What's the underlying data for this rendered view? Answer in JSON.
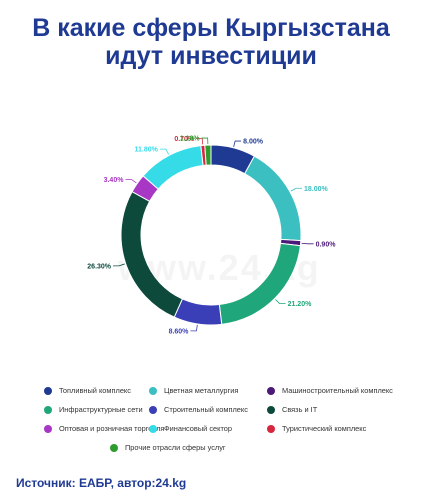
{
  "title_line1": "В какие сферы Кыргызстана",
  "title_line2": "идут инвестиции",
  "watermark": "www.24.kg",
  "source": "Источник: ЕАБР, автор:24.kg",
  "chart_data": {
    "type": "pie",
    "donut": true,
    "legend_position": "bottom",
    "series": [
      {
        "name": "Топливный комплекс",
        "value": 8.0,
        "label": "8.00%",
        "color": "#1f3a93"
      },
      {
        "name": "Цветная металлургия",
        "value": 18.0,
        "label": "18.00%",
        "color": "#3bbfc1"
      },
      {
        "name": "Машиностроительный комплекс",
        "value": 0.9,
        "label": "0.90%",
        "color": "#4b1a78"
      },
      {
        "name": "Инфраструктурные сети",
        "value": 21.2,
        "label": "21.20%",
        "color": "#1fa67a"
      },
      {
        "name": "Строительный комплекс",
        "value": 8.6,
        "label": "8.60%",
        "color": "#3a3fb8"
      },
      {
        "name": "Связь и IT",
        "value": 26.3,
        "label": "26.30%",
        "color": "#0d4a3c"
      },
      {
        "name": "Оптовая и розничная торговля",
        "value": 3.4,
        "label": "3.40%",
        "color": "#a837c6"
      },
      {
        "name": "Финансовый сектор",
        "value": 11.8,
        "label": "11.80%",
        "color": "#36dbe8"
      },
      {
        "name": "Туристический комплекс",
        "value": 0.7,
        "label": "0.70%",
        "color": "#d7263d"
      },
      {
        "name": "Прочие отрасли сферы услуг",
        "value": 1.1,
        "label": "1.10%",
        "color": "#2e9b2e"
      }
    ]
  }
}
